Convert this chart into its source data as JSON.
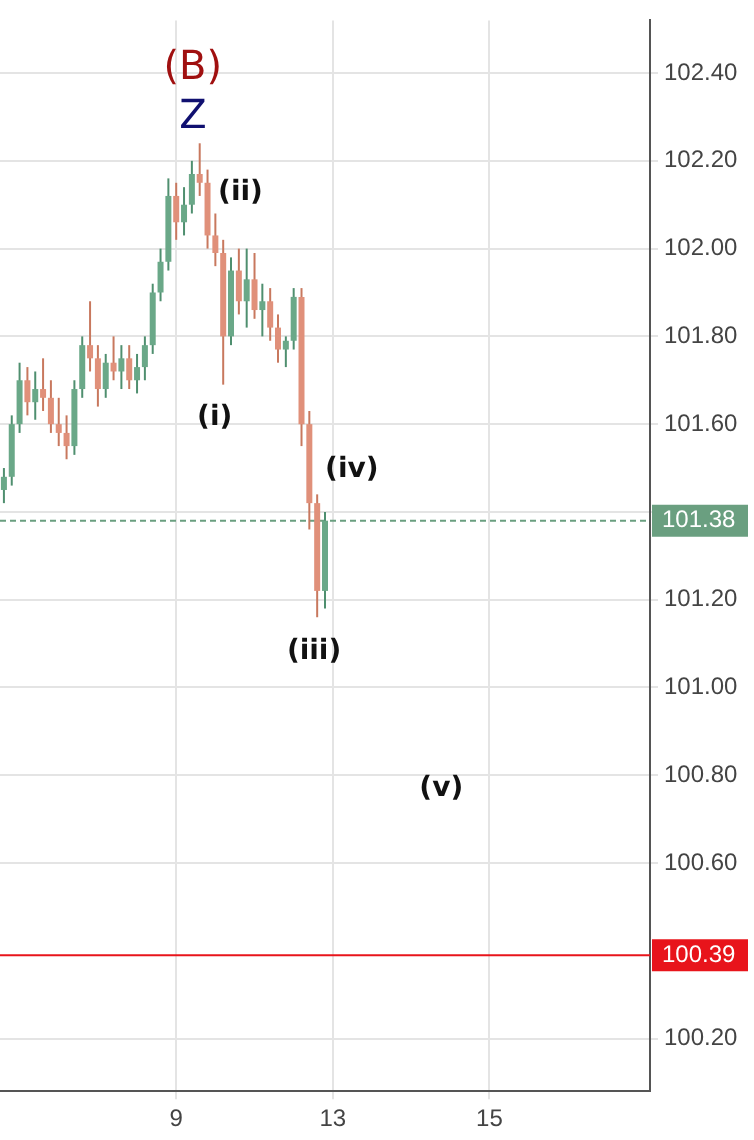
{
  "chart_data": {
    "type": "candlestick",
    "categories": [
      null,
      null,
      null,
      null,
      null,
      null,
      null,
      null,
      null,
      null,
      null,
      null,
      null,
      null,
      null,
      null,
      null,
      null,
      null,
      null,
      null,
      null,
      "9",
      null,
      null,
      null,
      null,
      null,
      null,
      null,
      null,
      null,
      null,
      null,
      null,
      null,
      null,
      null,
      null,
      null,
      null,
      null,
      "13",
      null,
      null,
      null,
      null,
      null,
      null,
      null,
      null,
      null,
      null,
      null,
      null,
      null,
      null,
      null,
      null,
      null,
      null,
      null,
      "15",
      null,
      null,
      null,
      null,
      null,
      null,
      null,
      null,
      null,
      null,
      null,
      null,
      null,
      null,
      null,
      null,
      null,
      null,
      null,
      null
    ],
    "ohlc": [
      [
        101.45,
        101.5,
        101.42,
        101.48
      ],
      [
        101.48,
        101.62,
        101.46,
        101.6
      ],
      [
        101.6,
        101.74,
        101.58,
        101.7
      ],
      [
        101.7,
        101.73,
        101.62,
        101.65
      ],
      [
        101.65,
        101.72,
        101.61,
        101.68
      ],
      [
        101.68,
        101.75,
        101.63,
        101.66
      ],
      [
        101.66,
        101.7,
        101.58,
        101.6
      ],
      [
        101.6,
        101.66,
        101.55,
        101.58
      ],
      [
        101.58,
        101.62,
        101.52,
        101.55
      ],
      [
        101.55,
        101.7,
        101.53,
        101.68
      ],
      [
        101.68,
        101.8,
        101.66,
        101.78
      ],
      [
        101.78,
        101.88,
        101.72,
        101.75
      ],
      [
        101.75,
        101.78,
        101.64,
        101.68
      ],
      [
        101.68,
        101.76,
        101.66,
        101.74
      ],
      [
        101.74,
        101.8,
        101.7,
        101.72
      ],
      [
        101.72,
        101.78,
        101.68,
        101.75
      ],
      [
        101.75,
        101.78,
        101.68,
        101.7
      ],
      [
        101.7,
        101.76,
        101.67,
        101.73
      ],
      [
        101.73,
        101.8,
        101.7,
        101.78
      ],
      [
        101.78,
        101.92,
        101.76,
        101.9
      ],
      [
        101.9,
        102.0,
        101.88,
        101.97
      ],
      [
        101.97,
        102.16,
        101.95,
        102.12
      ],
      [
        102.12,
        102.15,
        102.02,
        102.06
      ],
      [
        102.06,
        102.14,
        102.03,
        102.1
      ],
      [
        102.1,
        102.2,
        102.08,
        102.17
      ],
      [
        102.17,
        102.24,
        102.12,
        102.15
      ],
      [
        102.15,
        102.18,
        102.0,
        102.03
      ],
      [
        102.03,
        102.08,
        101.96,
        101.99
      ],
      [
        101.99,
        102.02,
        101.69,
        101.8
      ],
      [
        101.8,
        101.98,
        101.78,
        101.95
      ],
      [
        101.95,
        102.0,
        101.85,
        101.88
      ],
      [
        101.88,
        102.0,
        101.82,
        101.93
      ],
      [
        101.93,
        101.99,
        101.84,
        101.86
      ],
      [
        101.86,
        101.92,
        101.8,
        101.88
      ],
      [
        101.88,
        101.91,
        101.79,
        101.82
      ],
      [
        101.82,
        101.85,
        101.74,
        101.77
      ],
      [
        101.77,
        101.8,
        101.73,
        101.79
      ],
      [
        101.79,
        101.91,
        101.77,
        101.89
      ],
      [
        101.89,
        101.91,
        101.55,
        101.6
      ],
      [
        101.6,
        101.63,
        101.36,
        101.42
      ],
      [
        101.42,
        101.44,
        101.16,
        101.22
      ],
      [
        101.22,
        101.4,
        101.18,
        101.38
      ],
      null,
      null,
      null,
      null,
      null,
      null,
      null,
      null,
      null,
      null,
      null,
      null,
      null,
      null,
      null,
      null,
      null,
      null,
      null,
      null,
      null,
      null,
      null,
      null,
      null,
      null,
      null,
      null,
      null,
      null,
      null,
      null,
      null,
      null,
      null,
      null,
      null,
      null,
      null,
      null,
      null
    ],
    "ylim": [
      100.08,
      102.52
    ],
    "yticks": [
      {
        "value": 100.2,
        "label": "100.20"
      },
      {
        "value": 100.6,
        "label": "100.60"
      },
      {
        "value": 100.8,
        "label": "100.80"
      },
      {
        "value": 101.0,
        "label": "101.00"
      },
      {
        "value": 101.2,
        "label": "101.20"
      },
      {
        "value": 101.4,
        "label": null
      },
      {
        "value": 101.6,
        "label": "101.60"
      },
      {
        "value": 101.8,
        "label": "101.80"
      },
      {
        "value": 102.0,
        "label": "102.00"
      },
      {
        "value": 102.2,
        "label": "102.20"
      },
      {
        "value": 102.4,
        "label": "102.40"
      }
    ],
    "ref_lines": [
      {
        "axis": "y",
        "value": 101.38,
        "label": "101.38",
        "color": "#6a9f80",
        "line_style": "dashed"
      },
      {
        "axis": "y",
        "value": 100.39,
        "label": "100.39",
        "color": "#e8141b",
        "line_style": "solid"
      }
    ],
    "annotations": [
      "(B)",
      "Z",
      "(ii)",
      "(i)",
      "(iv)",
      "(iii)",
      "(v)"
    ],
    "grid": true
  }
}
